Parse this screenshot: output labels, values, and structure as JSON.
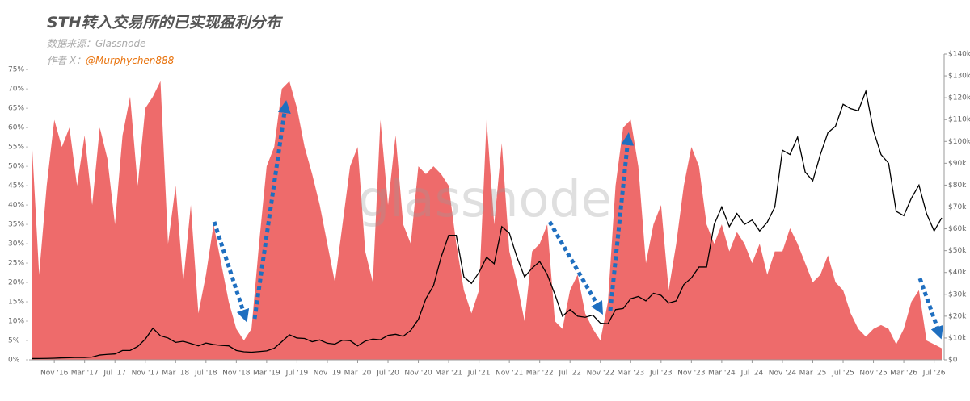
{
  "chart_data": {
    "type": "area-line",
    "title": "STH转入交易所的已实现盈利分布",
    "subtitle": "数据来源：Glassnode",
    "author_prefix": "作者 X：",
    "author": "@Murphychen888",
    "watermark": "glassnode",
    "categories": [
      null,
      null,
      null,
      "Nov '16",
      null,
      null,
      null,
      "Mar '17",
      null,
      null,
      null,
      "Jul '17",
      null,
      null,
      null,
      "Nov '17",
      null,
      null,
      null,
      "Mar '18",
      null,
      null,
      null,
      "Jul '18",
      null,
      null,
      null,
      "Nov '18",
      null,
      null,
      null,
      "Mar '19",
      null,
      null,
      null,
      "Jul '19",
      null,
      null,
      null,
      "Nov '19",
      null,
      null,
      null,
      "Mar '20",
      null,
      null,
      null,
      "Jul '20",
      null,
      null,
      null,
      "Nov '20",
      null,
      null,
      null,
      "Mar '21",
      null,
      null,
      null,
      "Jul '21",
      null,
      null,
      null,
      "Nov '21",
      null,
      null,
      null,
      "Mar '22",
      null,
      null,
      null,
      "Jul '22",
      null,
      null,
      null,
      "Nov '22",
      null,
      null,
      null,
      "Mar '23",
      null,
      null,
      null,
      "Jul '23",
      null,
      null,
      null,
      "Nov '23",
      null,
      null,
      null,
      "Mar '24",
      null,
      null,
      null,
      "Jul '24",
      null,
      null,
      null,
      "Nov '24",
      null,
      null,
      null,
      "Mar '25",
      null,
      null,
      null,
      "Jul '25",
      null,
      null,
      null,
      "Nov '25",
      null,
      null,
      null,
      "Mar '26",
      null,
      null,
      null,
      "Jul '26",
      null
    ],
    "series": [
      {
        "kind": "area",
        "color": "#ee6b6b",
        "values": [
          58,
          22,
          45,
          62,
          55,
          60,
          45,
          58,
          40,
          60,
          52,
          35,
          58,
          68,
          45,
          65,
          68,
          72,
          30,
          45,
          20,
          40,
          12,
          22,
          35,
          25,
          15,
          8,
          5,
          8,
          30,
          50,
          55,
          70,
          72,
          65,
          55,
          48,
          40,
          30,
          20,
          35,
          50,
          55,
          28,
          20,
          62,
          40,
          58,
          35,
          30,
          50,
          48,
          50,
          48,
          45,
          30,
          18,
          12,
          18,
          62,
          35,
          56,
          28,
          20,
          10,
          28,
          30,
          35,
          10,
          8,
          18,
          22,
          12,
          8,
          5,
          15,
          45,
          60,
          62,
          50,
          25,
          35,
          40,
          18,
          30,
          45,
          55,
          50,
          35,
          30,
          35,
          28,
          33,
          30,
          25,
          30,
          22,
          28,
          28,
          34,
          30,
          25,
          20,
          22,
          27,
          20,
          18,
          12,
          8,
          6,
          8,
          9,
          8,
          4,
          8,
          15,
          18,
          5,
          4,
          3
        ]
      },
      {
        "kind": "line",
        "color": "#000000",
        "axis": "y2",
        "values": [
          580,
          610,
          650,
          740,
          900,
          980,
          1100,
          1050,
          1300,
          2200,
          2500,
          2700,
          4300,
          4300,
          6100,
          9500,
          14500,
          11000,
          10000,
          8000,
          8500,
          7500,
          6400,
          7700,
          7000,
          6600,
          6400,
          4300,
          3700,
          3500,
          3800,
          4100,
          5300,
          8300,
          11500,
          10000,
          9800,
          8300,
          9100,
          7600,
          7200,
          9000,
          8800,
          6400,
          8600,
          9500,
          9200,
          11200,
          11700,
          10800,
          13500,
          18500,
          28000,
          34000,
          47000,
          57000,
          57000,
          38000,
          35000,
          40000,
          47000,
          44000,
          61000,
          58000,
          47000,
          38000,
          42000,
          45000,
          39000,
          30000,
          20000,
          23000,
          20000,
          19500,
          20500,
          16800,
          16500,
          23000,
          23500,
          28000,
          29000,
          27000,
          30500,
          29500,
          26000,
          27000,
          34500,
          37500,
          42500,
          42500,
          62000,
          70000,
          61000,
          67000,
          62000,
          64000,
          59000,
          63000,
          70000,
          96000,
          94000,
          102000,
          86000,
          82000,
          94000,
          104000,
          107000,
          117000,
          115000,
          114000,
          123000,
          105000,
          94000,
          90000,
          68000,
          66000,
          74000,
          80000,
          67000,
          59000,
          65000
        ]
      }
    ],
    "ylim": [
      0,
      79
    ],
    "yticks": [
      {
        "value": 0,
        "label": "0%"
      },
      {
        "value": 5,
        "label": "5%"
      },
      {
        "value": 10,
        "label": "10%"
      },
      {
        "value": 15,
        "label": "15%"
      },
      {
        "value": 20,
        "label": "20%"
      },
      {
        "value": 25,
        "label": "25%"
      },
      {
        "value": 30,
        "label": "30%"
      },
      {
        "value": 35,
        "label": "35%"
      },
      {
        "value": 40,
        "label": "40%"
      },
      {
        "value": 45,
        "label": "45%"
      },
      {
        "value": 50,
        "label": "50%"
      },
      {
        "value": 55,
        "label": "55%"
      },
      {
        "value": 60,
        "label": "60%"
      },
      {
        "value": 65,
        "label": "65%"
      },
      {
        "value": 70,
        "label": "70%"
      },
      {
        "value": 75,
        "label": "75%"
      }
    ],
    "y2lim": [
      0,
      140000
    ],
    "y2ticks": [
      {
        "value": 0,
        "label": "$0"
      },
      {
        "value": 10000,
        "label": "$10k"
      },
      {
        "value": 20000,
        "label": "$20k"
      },
      {
        "value": 30000,
        "label": "$30k"
      },
      {
        "value": 40000,
        "label": "$40k"
      },
      {
        "value": 50000,
        "label": "$50k"
      },
      {
        "value": 60000,
        "label": "$60k"
      },
      {
        "value": 70000,
        "label": "$70k"
      },
      {
        "value": 80000,
        "label": "$80k"
      },
      {
        "value": 90000,
        "label": "$90k"
      },
      {
        "value": 100000,
        "label": "$100k"
      },
      {
        "value": 110000,
        "label": "$110k"
      },
      {
        "value": 120000,
        "label": "$120k"
      },
      {
        "value": 130000,
        "label": "$130k"
      },
      {
        "value": 140000,
        "label": "$140k"
      }
    ],
    "grid": false
  }
}
